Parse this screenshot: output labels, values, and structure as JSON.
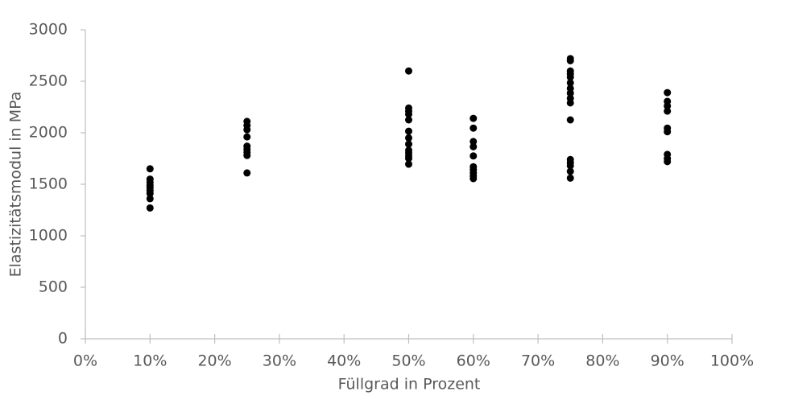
{
  "chart_data": {
    "type": "scatter",
    "x_label": "Füllgrad in Prozent",
    "y_label": "Elastizitätsmodul in MPa",
    "xlim": [
      0,
      100
    ],
    "xticks": [
      {
        "value": 0,
        "label": "0%"
      },
      {
        "value": 10,
        "label": "10%"
      },
      {
        "value": 20,
        "label": "20%"
      },
      {
        "value": 30,
        "label": "30%"
      },
      {
        "value": 40,
        "label": "40%"
      },
      {
        "value": 50,
        "label": "50%"
      },
      {
        "value": 60,
        "label": "60%"
      },
      {
        "value": 70,
        "label": "70%"
      },
      {
        "value": 80,
        "label": "80%"
      },
      {
        "value": 90,
        "label": "90%"
      },
      {
        "value": 100,
        "label": "100%"
      }
    ],
    "ylim": [
      0,
      3000
    ],
    "yticks": [
      0,
      500,
      1000,
      1500,
      2000,
      2500,
      3000
    ],
    "grid": false,
    "series": [
      {
        "color": "#000000",
        "x": [
          10,
          10,
          10,
          10,
          10,
          10,
          10,
          10,
          10,
          25,
          25,
          25,
          25,
          25,
          25,
          25,
          25,
          25,
          50,
          50,
          50,
          50,
          50,
          50,
          50,
          50,
          50,
          50,
          50,
          50,
          50,
          60,
          60,
          60,
          60,
          60,
          60,
          60,
          60,
          60,
          60,
          75,
          75,
          75,
          75,
          75,
          75,
          75,
          75,
          75,
          75,
          75,
          75,
          75,
          75,
          75,
          75,
          90,
          90,
          90,
          90,
          90,
          90,
          90,
          90,
          90
        ],
        "values": [
          1650,
          1550,
          1520,
          1490,
          1470,
          1440,
          1410,
          1360,
          1270,
          2110,
          2070,
          2030,
          1960,
          1870,
          1840,
          1810,
          1780,
          1610,
          2600,
          2240,
          2210,
          2180,
          2125,
          2015,
          1950,
          1890,
          1830,
          1805,
          1775,
          1750,
          1695,
          2140,
          2045,
          1915,
          1865,
          1775,
          1670,
          1640,
          1610,
          1580,
          1555,
          2720,
          2700,
          2600,
          2570,
          2540,
          2485,
          2430,
          2385,
          2335,
          2290,
          2125,
          1740,
          1710,
          1680,
          1625,
          1560,
          2390,
          2305,
          2260,
          2210,
          2045,
          2010,
          1790,
          1750,
          1720
        ]
      }
    ]
  }
}
